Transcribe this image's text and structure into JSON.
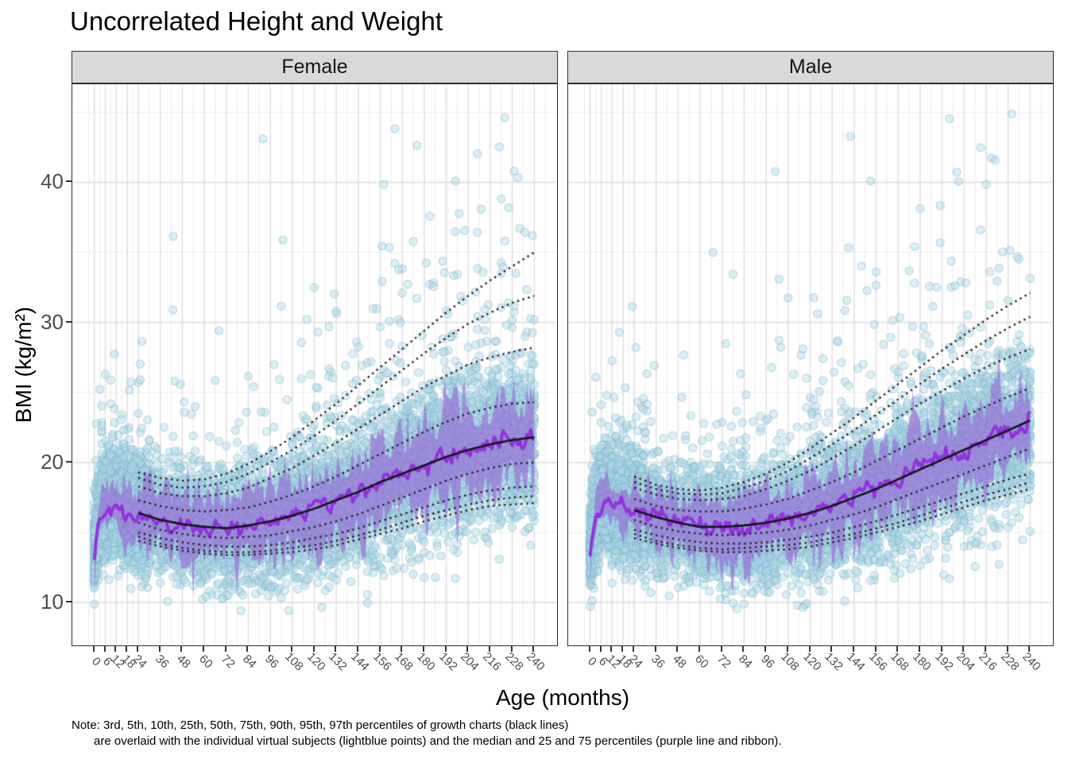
{
  "title": "Uncorrelated Height and Weight",
  "facets": [
    "Female",
    "Male"
  ],
  "x_axis": {
    "title": "Age (months)",
    "ticks": [
      "0",
      "6",
      "12",
      "18",
      "24",
      "36",
      "48",
      "60",
      "72",
      "84",
      "96",
      "108",
      "120",
      "132",
      "144",
      "156",
      "168",
      "180",
      "192",
      "204",
      "216",
      "228",
      "240"
    ]
  },
  "y_axis": {
    "title": "BMI (kg/m²)",
    "ticks": [
      "10",
      "20",
      "30",
      "40"
    ]
  },
  "note": {
    "line1": "Note: 3rd, 5th, 10th, 25th, 50th, 75th, 90th, 95th, 97th percentiles of growth charts (black lines)",
    "line2": "are overlaid with the individual virtual subjects (lightblue points) and the median and 25 and 75 percentiles (purple line and ribbon)."
  },
  "colors": {
    "point_fill": "rgba(173,216,230,0.42)",
    "point_stroke": "rgba(122,178,198,0.40)",
    "ribbon_fill": "rgba(150,100,215,0.62)",
    "median_line": "#9232dd",
    "growth_median_line": "#17171d",
    "dotted_percentile": "#26262a",
    "grid_major": "#e0e0e0",
    "grid_minor": "#eeeeee",
    "strip_bg": "#d9d9d9",
    "panel_border": "#2f2f2f",
    "axis_text": "#4d4d4d",
    "tick_mark": "#333333"
  },
  "chart_data": {
    "type": "scatter",
    "title": "Uncorrelated Height and Weight",
    "xlabel": "Age (months)",
    "ylabel": "BMI (kg/m²)",
    "xlim": [
      -12,
      252
    ],
    "ylim": [
      7,
      47
    ],
    "x_major_breaks": [
      0,
      6,
      12,
      18,
      24,
      36,
      48,
      60,
      72,
      84,
      96,
      108,
      120,
      132,
      144,
      156,
      168,
      180,
      192,
      204,
      216,
      228,
      240
    ],
    "y_major_breaks": [
      10,
      20,
      30,
      40
    ],
    "y_minor_breaks": [
      15,
      25,
      35,
      45
    ],
    "percentile_ages": [
      24,
      36,
      48,
      60,
      72,
      84,
      96,
      108,
      120,
      132,
      144,
      156,
      168,
      180,
      192,
      204,
      216,
      228,
      240
    ],
    "percentile_labels": [
      "P3",
      "P5",
      "P10",
      "P25",
      "P50",
      "P75",
      "P90",
      "P95",
      "P97"
    ],
    "growth_percentiles": {
      "Female": {
        "P97": [
          19.3,
          18.9,
          18.7,
          18.8,
          19.2,
          19.9,
          20.8,
          21.8,
          23.0,
          24.2,
          25.5,
          26.8,
          28.1,
          29.4,
          30.7,
          31.9,
          33.0,
          34.0,
          35.0
        ],
        "P95": [
          18.9,
          18.4,
          18.2,
          18.3,
          18.6,
          19.2,
          20.0,
          20.9,
          21.9,
          23.0,
          24.2,
          25.4,
          26.6,
          27.8,
          28.9,
          29.9,
          30.7,
          31.4,
          31.9
        ],
        "P90": [
          18.3,
          17.8,
          17.6,
          17.6,
          17.8,
          18.2,
          18.9,
          19.6,
          20.5,
          21.4,
          22.4,
          23.4,
          24.4,
          25.4,
          26.2,
          27.0,
          27.5,
          27.9,
          28.2
        ],
        "P75": [
          17.3,
          16.9,
          16.6,
          16.5,
          16.6,
          16.8,
          17.2,
          17.7,
          18.3,
          19.0,
          19.8,
          20.6,
          21.4,
          22.2,
          22.9,
          23.5,
          23.9,
          24.2,
          24.3
        ],
        "P50": [
          16.4,
          15.9,
          15.6,
          15.4,
          15.3,
          15.5,
          15.8,
          16.2,
          16.7,
          17.3,
          17.9,
          18.6,
          19.2,
          19.8,
          20.4,
          20.9,
          21.3,
          21.6,
          21.8
        ],
        "P25": [
          15.7,
          15.2,
          14.9,
          14.7,
          14.6,
          14.7,
          14.8,
          15.1,
          15.4,
          15.8,
          16.3,
          16.9,
          17.5,
          18.1,
          18.7,
          19.2,
          19.6,
          19.9,
          20.0
        ],
        "P10": [
          15.0,
          14.6,
          14.3,
          14.1,
          14.0,
          14.0,
          14.1,
          14.3,
          14.6,
          14.9,
          15.3,
          15.8,
          16.3,
          16.8,
          17.3,
          17.7,
          18.0,
          18.2,
          18.3
        ],
        "P5": [
          14.7,
          14.2,
          13.9,
          13.7,
          13.6,
          13.6,
          13.7,
          13.9,
          14.1,
          14.4,
          14.8,
          15.2,
          15.7,
          16.2,
          16.6,
          17.0,
          17.3,
          17.5,
          17.6
        ],
        "P3": [
          14.4,
          14.0,
          13.7,
          13.5,
          13.4,
          13.4,
          13.5,
          13.6,
          13.8,
          14.1,
          14.5,
          14.9,
          15.3,
          15.8,
          16.2,
          16.6,
          16.9,
          17.0,
          17.1
        ]
      },
      "Male": {
        "P97": [
          19.0,
          18.4,
          18.1,
          18.0,
          18.2,
          18.6,
          19.2,
          20.0,
          21.0,
          22.1,
          23.2,
          24.4,
          25.6,
          26.8,
          28.0,
          29.1,
          30.2,
          31.2,
          32.1
        ],
        "P95": [
          18.6,
          18.1,
          17.8,
          17.7,
          17.8,
          18.2,
          18.7,
          19.4,
          20.3,
          21.3,
          22.3,
          23.4,
          24.5,
          25.6,
          26.7,
          27.7,
          28.7,
          29.6,
          30.4
        ],
        "P90": [
          18.2,
          17.7,
          17.4,
          17.3,
          17.4,
          17.6,
          18.1,
          18.7,
          19.4,
          20.3,
          21.2,
          22.2,
          23.2,
          24.2,
          25.1,
          26.0,
          26.8,
          27.5,
          28.1
        ],
        "P75": [
          17.4,
          16.9,
          16.6,
          16.5,
          16.5,
          16.7,
          17.0,
          17.4,
          18.0,
          18.6,
          19.3,
          20.1,
          20.9,
          21.7,
          22.5,
          23.3,
          24.0,
          24.7,
          25.3
        ],
        "P50": [
          16.6,
          16.1,
          15.7,
          15.4,
          15.4,
          15.5,
          15.7,
          16.0,
          16.4,
          16.9,
          17.5,
          18.1,
          18.8,
          19.5,
          20.2,
          20.9,
          21.6,
          22.3,
          23.0
        ],
        "P25": [
          15.9,
          15.4,
          15.1,
          14.9,
          14.8,
          14.9,
          15.0,
          15.2,
          15.5,
          15.9,
          16.3,
          16.8,
          17.4,
          18.0,
          18.6,
          19.2,
          19.8,
          20.4,
          21.0
        ],
        "P10": [
          15.2,
          14.8,
          14.5,
          14.3,
          14.2,
          14.2,
          14.3,
          14.5,
          14.7,
          15.0,
          15.4,
          15.8,
          16.3,
          16.8,
          17.3,
          17.8,
          18.3,
          18.8,
          19.2
        ],
        "P5": [
          14.9,
          14.4,
          14.1,
          13.9,
          13.8,
          13.9,
          14.0,
          14.1,
          14.3,
          14.6,
          14.9,
          15.3,
          15.7,
          16.2,
          16.7,
          17.2,
          17.7,
          18.1,
          18.6
        ],
        "P3": [
          14.6,
          14.2,
          13.9,
          13.7,
          13.6,
          13.6,
          13.7,
          13.8,
          14.0,
          14.3,
          14.6,
          15.0,
          15.4,
          15.8,
          16.3,
          16.8,
          17.3,
          17.7,
          18.1
        ]
      }
    },
    "simulated_subjects": {
      "infant_ages": [
        0,
        1,
        2,
        3,
        4,
        6,
        8,
        10,
        12,
        15,
        18,
        21,
        24
      ],
      "infant_median": {
        "Female": [
          13.6,
          14.6,
          15.4,
          15.9,
          16.3,
          16.8,
          17.0,
          17.0,
          16.9,
          16.7,
          16.6,
          16.45,
          16.35
        ],
        "Male": [
          13.8,
          14.9,
          15.7,
          16.3,
          16.7,
          17.15,
          17.3,
          17.3,
          17.15,
          16.95,
          16.8,
          16.7,
          16.6
        ]
      },
      "ribbon_halfwidth_ages": [
        0,
        6,
        12,
        24,
        48,
        96,
        144,
        192,
        240
      ],
      "ribbon_halfwidth": {
        "Female": [
          0.9,
          1.2,
          1.3,
          1.6,
          2.0,
          2.2,
          2.5,
          2.65,
          2.8
        ],
        "Male": [
          0.9,
          1.2,
          1.3,
          1.6,
          2.0,
          2.2,
          2.4,
          2.5,
          2.3
        ]
      },
      "points": {
        "n_base": 6800,
        "n_young_extra": 1600,
        "seeds": {
          "Female": 42,
          "Male": 9001
        },
        "point_radius": 5.0,
        "sigma_low_base": 1.55,
        "sigma_low_slope": 1.5,
        "sigma_up_base": 1.6,
        "sigma_up_slope": 1.1,
        "tail_fraction": 0.17,
        "tail_base": 1.8,
        "tail_slope": 4.7,
        "bmi_min": 9.0,
        "bmi_max": 46.6
      }
    }
  }
}
